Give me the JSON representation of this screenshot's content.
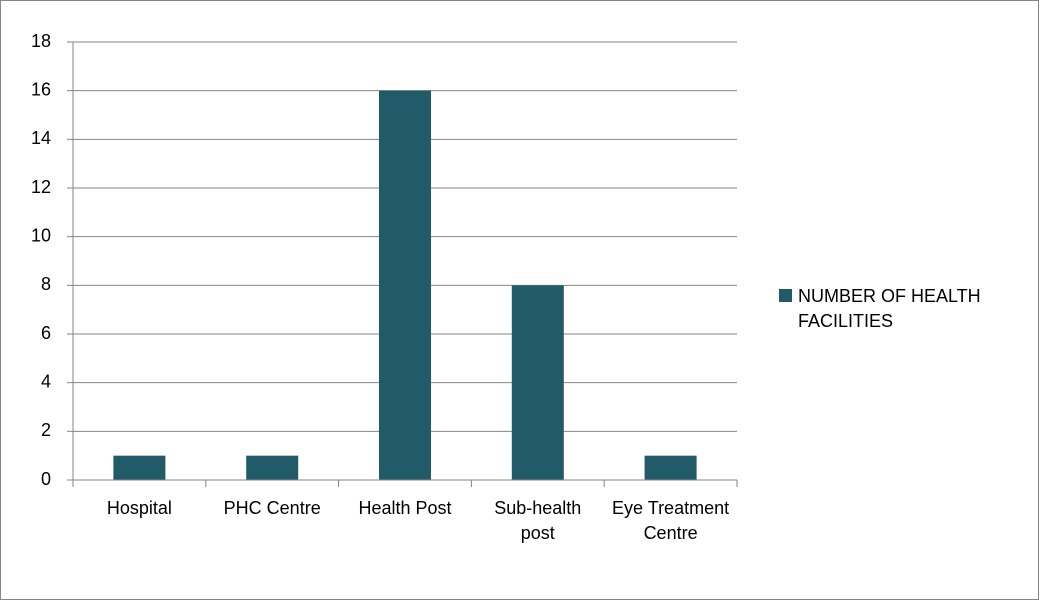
{
  "chart_data": {
    "type": "bar",
    "categories": [
      "Hospital",
      "PHC Centre",
      "Health Post",
      "Sub-health post",
      "Eye Treatment Centre"
    ],
    "series": [
      {
        "name": "NUMBER OF HEALTH FACILITIES",
        "color": "#215a69",
        "values": [
          1,
          1,
          16,
          8,
          1
        ]
      }
    ],
    "ylim": [
      0,
      18
    ],
    "yticks": [
      0,
      2,
      4,
      6,
      8,
      10,
      12,
      14,
      16,
      18
    ],
    "grid": true,
    "legend": "right"
  }
}
